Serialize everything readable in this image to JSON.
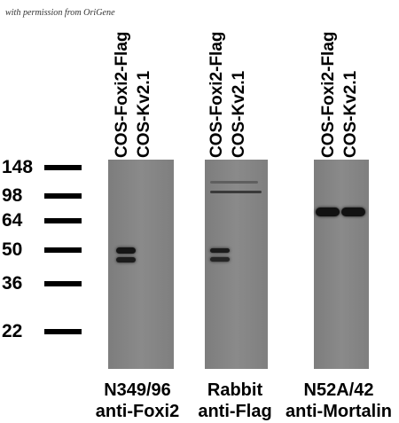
{
  "watermark": "with permission from OriGene",
  "lanes": [
    {
      "label": "COS-Foxi2-Flag"
    },
    {
      "label": "COS-Kv2.1"
    },
    {
      "label": "COS-Foxi2-Flag"
    },
    {
      "label": "COS-Kv2.1"
    },
    {
      "label": "COS-Foxi2-Flag"
    },
    {
      "label": "COS-Kv2.1"
    }
  ],
  "mw_markers": [
    "148",
    "98",
    "64",
    "50",
    "36",
    "22"
  ],
  "panels": [
    {
      "caption_line1": "N349/96",
      "caption_line2": "anti-Foxi2"
    },
    {
      "caption_line1": "Rabbit",
      "caption_line2": "anti-Flag"
    },
    {
      "caption_line1": "N52A/42",
      "caption_line2": "anti-Mortalin"
    }
  ],
  "colors": {
    "membrane": "#828282",
    "band": "#111111"
  }
}
